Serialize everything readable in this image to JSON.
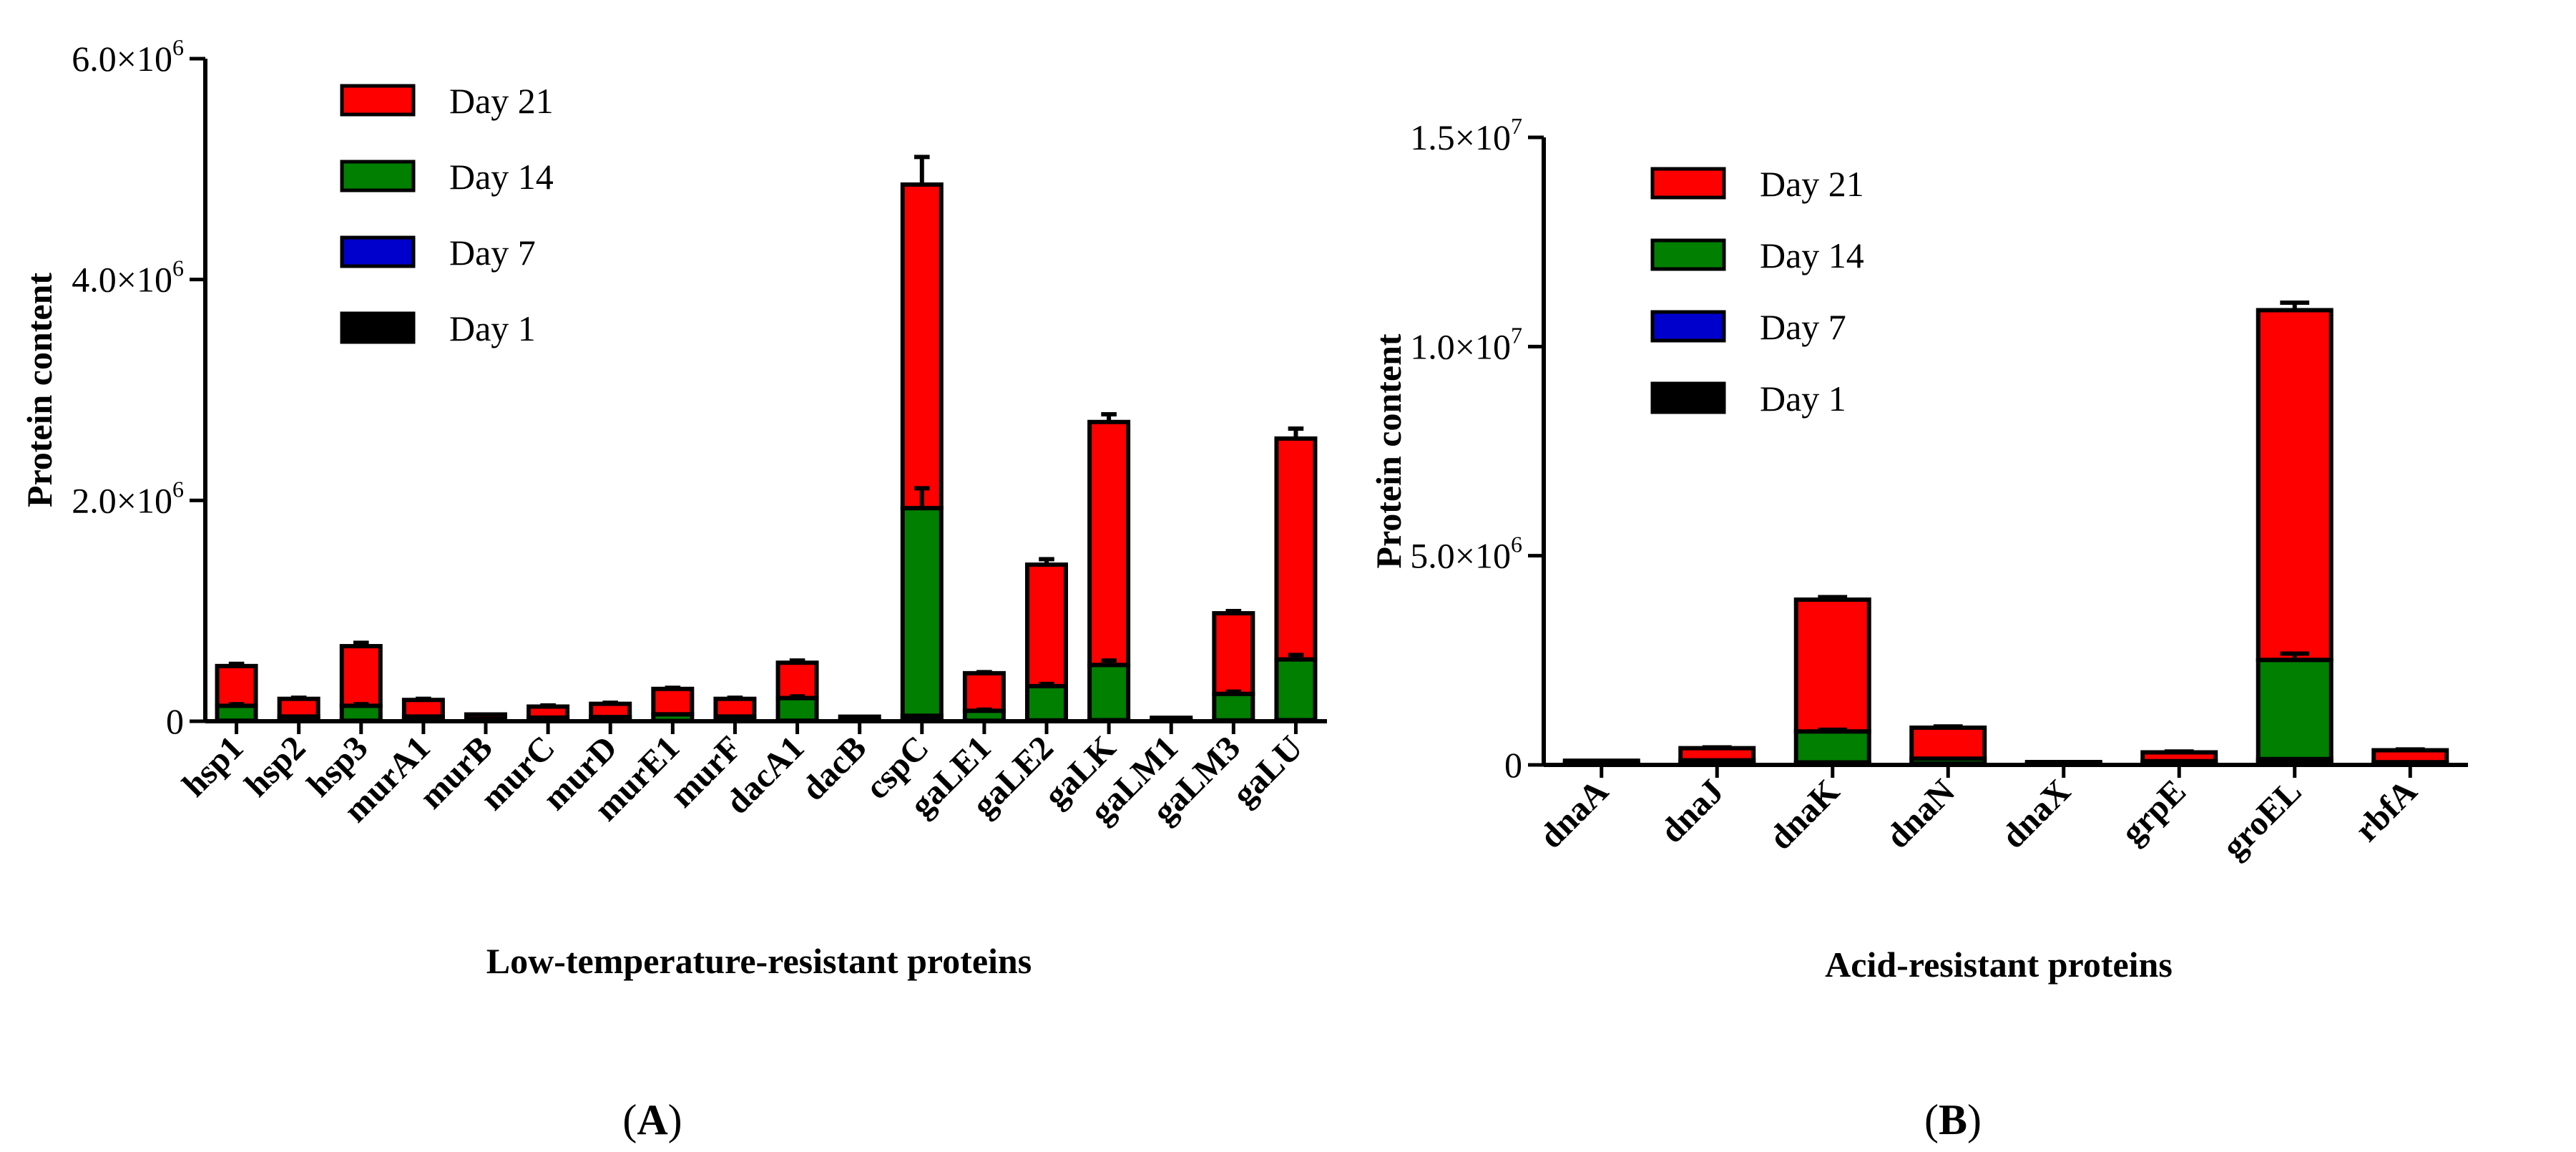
{
  "colors": {
    "day21": "#FF0000",
    "day14": "#007F00",
    "day7": "#0000CC",
    "day1": "#000000",
    "axis": "#000000"
  },
  "chart_data": [
    {
      "type": "bar",
      "stacked": true,
      "panel_label": "(A)",
      "panel_letter": "A",
      "xlabel": "Low-temperature-resistant proteins",
      "ylabel": "Protein content",
      "ylim": [
        0,
        6000000
      ],
      "yticks": [
        {
          "value": 0,
          "mantissa": "0",
          "exponent": ""
        },
        {
          "value": 2000000,
          "mantissa": "2.0×10",
          "exponent": "6"
        },
        {
          "value": 4000000,
          "mantissa": "4.0×10",
          "exponent": "6"
        },
        {
          "value": 6000000,
          "mantissa": "6.0×10",
          "exponent": "6"
        }
      ],
      "legend_position": "top-left",
      "legend": [
        "Day 21",
        "Day 14",
        "Day 7",
        "Day 1"
      ],
      "categories": [
        "hsp1",
        "hsp2",
        "hsp3",
        "murA1",
        "murB",
        "murC",
        "murD",
        "murE1",
        "murF",
        "dacA1",
        "dacB",
        "cspC",
        "gaLE1",
        "gaLE2",
        "gaLK",
        "gaLM1",
        "gaLM3",
        "gaLU"
      ],
      "series": [
        {
          "name": "Day 1",
          "key": "day1",
          "values": [
            2000,
            1000,
            2000,
            1000,
            500,
            1000,
            1000,
            1000,
            1000,
            2000,
            500,
            10000,
            2000,
            3000,
            4000,
            500,
            3000,
            5000
          ]
        },
        {
          "name": "Day 7",
          "key": "day7",
          "values": [
            3000,
            2000,
            3000,
            2000,
            1000,
            2000,
            2000,
            2000,
            2000,
            3000,
            1000,
            40000,
            3000,
            5000,
            6000,
            1000,
            5000,
            5000
          ]
        },
        {
          "name": "Day 14",
          "key": "day14",
          "values": [
            135000,
            40000,
            135000,
            40000,
            20000,
            30000,
            35000,
            60000,
            40000,
            205000,
            10000,
            1880000,
            90000,
            310000,
            500000,
            10000,
            240000,
            550000
          ]
        },
        {
          "name": "Day 21",
          "key": "day21",
          "values": [
            360000,
            160000,
            540000,
            150000,
            40000,
            100000,
            120000,
            230000,
            160000,
            320000,
            30000,
            2930000,
            340000,
            1100000,
            2200000,
            20000,
            730000,
            2000000
          ]
        }
      ],
      "error_bars": {
        "day14": [
          15000,
          5000,
          15000,
          5000,
          2000,
          5000,
          5000,
          5000,
          5000,
          15000,
          2000,
          180000,
          10000,
          20000,
          40000,
          2000,
          20000,
          40000
        ],
        "day21": [
          20000,
          10000,
          30000,
          10000,
          5000,
          10000,
          10000,
          10000,
          10000,
          20000,
          5000,
          250000,
          10000,
          50000,
          70000,
          5000,
          20000,
          90000
        ]
      }
    },
    {
      "type": "bar",
      "stacked": true,
      "panel_label": "(B)",
      "panel_letter": "B",
      "xlabel": "Acid-resistant proteins",
      "ylabel": "Protein content",
      "ylim": [
        0,
        15000000
      ],
      "yticks": [
        {
          "value": 0,
          "mantissa": "0",
          "exponent": ""
        },
        {
          "value": 5000000,
          "mantissa": "5.0×10",
          "exponent": "6"
        },
        {
          "value": 10000000,
          "mantissa": "1.0×10",
          "exponent": "7"
        },
        {
          "value": 15000000,
          "mantissa": "1.5×10",
          "exponent": "7"
        }
      ],
      "legend_position": "top-left",
      "legend": [
        "Day 21",
        "Day 14",
        "Day 7",
        "Day 1"
      ],
      "categories": [
        "dnaA",
        "dnaJ",
        "dnaK",
        "dnaN",
        "dnaX",
        "grpE",
        "groEL",
        "rbfA"
      ],
      "series": [
        {
          "name": "Day 1",
          "key": "day1",
          "values": [
            5000,
            10000,
            20000,
            10000,
            3000,
            10000,
            60000,
            5000
          ]
        },
        {
          "name": "Day 7",
          "key": "day7",
          "values": [
            10000,
            20000,
            40000,
            20000,
            5000,
            20000,
            80000,
            10000
          ]
        },
        {
          "name": "Day 14",
          "key": "day14",
          "values": [
            30000,
            80000,
            740000,
            120000,
            20000,
            60000,
            2370000,
            50000
          ]
        },
        {
          "name": "Day 21",
          "key": "day21",
          "values": [
            55000,
            290000,
            3150000,
            740000,
            40000,
            210000,
            8360000,
            285000
          ]
        }
      ],
      "error_bars": {
        "day14": [
          5000,
          10000,
          40000,
          10000,
          2000,
          10000,
          150000,
          5000
        ],
        "day21": [
          10000,
          20000,
          60000,
          30000,
          5000,
          20000,
          180000,
          20000
        ]
      }
    }
  ]
}
